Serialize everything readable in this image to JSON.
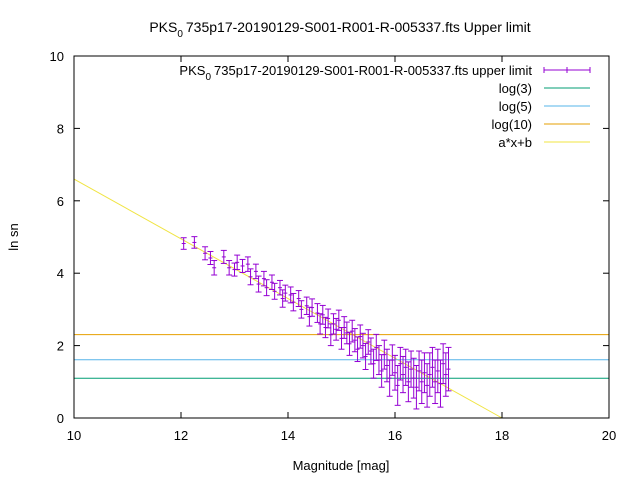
{
  "chart_data": {
    "type": "scatter",
    "title_prefix": "PKS",
    "title_sub": "0",
    "title_suffix": "735p17-20190129-S001-R001-R-005337.fts Upper limit",
    "xlabel": "Magnitude [mag]",
    "ylabel": "ln sn",
    "xlim": [
      10,
      20
    ],
    "ylim": [
      0,
      10
    ],
    "x_ticks": [
      "10",
      "12",
      "14",
      "16",
      "18",
      "20"
    ],
    "y_ticks": [
      "0",
      "2",
      "4",
      "6",
      "8",
      "10"
    ],
    "legend_position": "top-right",
    "colors": {
      "points": "#9400d3",
      "log3": "#009e73",
      "log5": "#56b4e9",
      "log10": "#e69f00",
      "fit": "#f0e442"
    },
    "series": [
      {
        "name_prefix": "PKS",
        "name_sub": "0",
        "name_suffix": "735p17-20190129-S001-R001-R-005337.fts upper limit",
        "style": "errorbars",
        "points": [
          [
            12.05,
            4.82,
            0.16
          ],
          [
            12.25,
            4.85,
            0.16
          ],
          [
            12.45,
            4.55,
            0.18
          ],
          [
            12.55,
            4.42,
            0.18
          ],
          [
            12.62,
            4.15,
            0.2
          ],
          [
            12.8,
            4.45,
            0.18
          ],
          [
            12.9,
            4.15,
            0.2
          ],
          [
            13.0,
            4.1,
            0.18
          ],
          [
            13.05,
            4.3,
            0.2
          ],
          [
            13.15,
            4.2,
            0.18
          ],
          [
            13.25,
            4.25,
            0.2
          ],
          [
            13.3,
            3.9,
            0.22
          ],
          [
            13.4,
            4.05,
            0.2
          ],
          [
            13.45,
            3.7,
            0.22
          ],
          [
            13.55,
            3.85,
            0.2
          ],
          [
            13.6,
            3.6,
            0.22
          ],
          [
            13.7,
            3.75,
            0.2
          ],
          [
            13.75,
            3.5,
            0.22
          ],
          [
            13.85,
            3.6,
            0.2
          ],
          [
            13.9,
            3.3,
            0.24
          ],
          [
            13.95,
            3.45,
            0.22
          ],
          [
            14.05,
            3.4,
            0.22
          ],
          [
            14.1,
            3.2,
            0.24
          ],
          [
            14.2,
            3.3,
            0.22
          ],
          [
            14.25,
            3.0,
            0.24
          ],
          [
            14.35,
            3.1,
            0.24
          ],
          [
            14.4,
            2.8,
            0.26
          ],
          [
            14.45,
            3.05,
            0.24
          ],
          [
            14.55,
            2.9,
            0.26
          ],
          [
            14.6,
            2.6,
            0.28
          ],
          [
            14.65,
            2.85,
            0.26
          ],
          [
            14.7,
            2.5,
            0.28
          ],
          [
            14.75,
            2.75,
            0.26
          ],
          [
            14.8,
            2.3,
            0.3
          ],
          [
            14.85,
            2.6,
            0.28
          ],
          [
            14.9,
            2.45,
            0.3
          ],
          [
            14.95,
            2.7,
            0.28
          ],
          [
            15.0,
            2.2,
            0.3
          ],
          [
            15.05,
            2.5,
            0.3
          ],
          [
            15.1,
            2.35,
            0.3
          ],
          [
            15.15,
            2.05,
            0.32
          ],
          [
            15.2,
            2.4,
            0.3
          ],
          [
            15.25,
            2.15,
            0.32
          ],
          [
            15.3,
            1.9,
            0.34
          ],
          [
            15.35,
            2.25,
            0.32
          ],
          [
            15.4,
            2.0,
            0.34
          ],
          [
            15.45,
            1.7,
            0.36
          ],
          [
            15.5,
            2.1,
            0.34
          ],
          [
            15.55,
            1.85,
            0.36
          ],
          [
            15.6,
            1.5,
            0.4
          ],
          [
            15.65,
            1.95,
            0.36
          ],
          [
            15.7,
            1.6,
            0.4
          ],
          [
            15.75,
            1.3,
            0.45
          ],
          [
            15.8,
            1.75,
            0.4
          ],
          [
            15.85,
            1.45,
            0.45
          ],
          [
            15.9,
            1.1,
            0.5
          ],
          [
            15.95,
            1.6,
            0.42
          ],
          [
            16.0,
            1.25,
            0.48
          ],
          [
            16.05,
            0.9,
            0.55
          ],
          [
            16.1,
            1.5,
            0.45
          ],
          [
            16.15,
            1.2,
            0.5
          ],
          [
            16.2,
            1.4,
            0.5
          ],
          [
            16.25,
            1.0,
            0.55
          ],
          [
            16.3,
            1.35,
            0.5
          ],
          [
            16.35,
            1.1,
            0.55
          ],
          [
            16.4,
            0.85,
            0.6
          ],
          [
            16.45,
            1.3,
            0.55
          ],
          [
            16.5,
            1.0,
            0.6
          ],
          [
            16.55,
            1.25,
            0.55
          ],
          [
            16.6,
            0.9,
            0.6
          ],
          [
            16.65,
            1.2,
            0.6
          ],
          [
            16.7,
            1.4,
            0.55
          ],
          [
            16.75,
            1.0,
            0.6
          ],
          [
            16.8,
            1.3,
            0.6
          ],
          [
            16.85,
            0.95,
            0.65
          ],
          [
            16.9,
            1.5,
            0.55
          ],
          [
            16.95,
            1.2,
            0.6
          ],
          [
            17.0,
            1.35,
            0.6
          ]
        ]
      },
      {
        "name": "log(3)",
        "style": "hline",
        "value": 1.0986
      },
      {
        "name": "log(5)",
        "style": "hline",
        "value": 1.6094
      },
      {
        "name": "log(10)",
        "style": "hline",
        "value": 2.3026
      },
      {
        "name": "a*x+b",
        "style": "line",
        "slope": -0.825,
        "intercept": 14.85
      }
    ]
  }
}
